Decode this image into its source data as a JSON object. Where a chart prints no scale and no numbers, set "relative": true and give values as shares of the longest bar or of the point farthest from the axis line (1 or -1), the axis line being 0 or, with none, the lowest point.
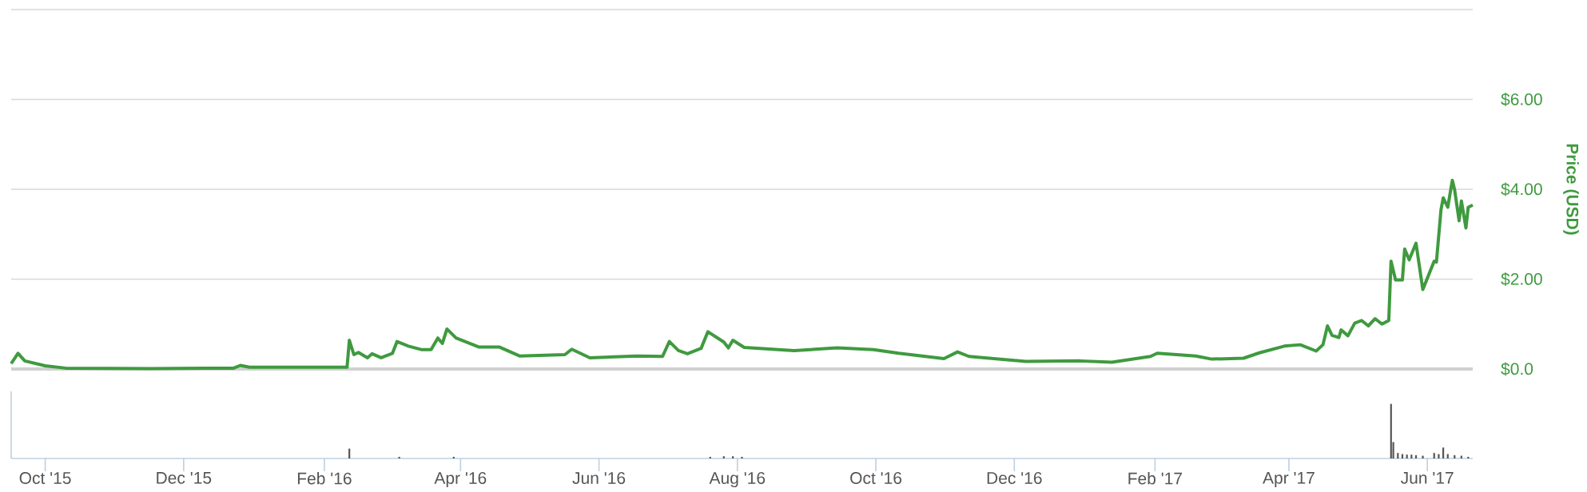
{
  "chart_data": [
    {
      "type": "line",
      "ylabel": "Price (USD)",
      "color": "#3f9a3f",
      "grid": "y",
      "tick_labels": "y",
      "xlim": [
        "2015-09-16",
        "2017-06-21"
      ],
      "ylim": [
        0,
        8
      ],
      "yticks": [
        {
          "value": 0,
          "label": "$0.0"
        },
        {
          "value": 2,
          "label": "$2.00"
        },
        {
          "value": 4,
          "label": "$4.00"
        },
        {
          "value": 6,
          "label": "$6.00"
        },
        {
          "value": 8,
          "label": null
        }
      ],
      "x": [
        "2015-09-16",
        "2015-09-19",
        "2015-09-22",
        "2015-10-01",
        "2015-10-10",
        "2015-11-17",
        "2015-12-23",
        "2015-12-26",
        "2015-12-30",
        "2016-02-11",
        "2016-02-12",
        "2016-02-14",
        "2016-02-16",
        "2016-02-20",
        "2016-02-22",
        "2016-02-26",
        "2016-03-02",
        "2016-03-04",
        "2016-03-09",
        "2016-03-15",
        "2016-03-19",
        "2016-03-22",
        "2016-03-24",
        "2016-03-26",
        "2016-03-30",
        "2016-04-09",
        "2016-04-18",
        "2016-04-27",
        "2016-05-17",
        "2016-05-20",
        "2016-05-28",
        "2016-06-18",
        "2016-06-29",
        "2016-07-02",
        "2016-07-06",
        "2016-07-10",
        "2016-07-16",
        "2016-07-19",
        "2016-07-26",
        "2016-07-28",
        "2016-07-30",
        "2016-08-04",
        "2016-08-26",
        "2016-09-14",
        "2016-09-30",
        "2016-10-11",
        "2016-10-31",
        "2016-11-06",
        "2016-11-11",
        "2016-12-06",
        "2016-12-30",
        "2017-01-13",
        "2017-01-30",
        "2017-02-02",
        "2017-02-19",
        "2017-02-26",
        "2017-03-12",
        "2017-03-19",
        "2017-03-30",
        "2017-04-06",
        "2017-04-13",
        "2017-04-16",
        "2017-04-18",
        "2017-04-20",
        "2017-04-23",
        "2017-04-24",
        "2017-04-27",
        "2017-04-30",
        "2017-05-03",
        "2017-05-06",
        "2017-05-09",
        "2017-05-12",
        "2017-05-15",
        "2017-05-16",
        "2017-05-18",
        "2017-05-21",
        "2017-05-22",
        "2017-05-24",
        "2017-05-27",
        "2017-05-30",
        "2017-06-04",
        "2017-06-05",
        "2017-06-07",
        "2017-06-08",
        "2017-06-10",
        "2017-06-12",
        "2017-06-13",
        "2017-06-15",
        "2017-06-16",
        "2017-06-18",
        "2017-06-19",
        "2017-06-21"
      ],
      "values": [
        0.12,
        0.35,
        0.18,
        0.07,
        0.02,
        0.01,
        0.02,
        0.08,
        0.04,
        0.04,
        0.64,
        0.32,
        0.37,
        0.25,
        0.34,
        0.25,
        0.35,
        0.61,
        0.51,
        0.43,
        0.43,
        0.69,
        0.57,
        0.89,
        0.69,
        0.49,
        0.49,
        0.29,
        0.32,
        0.44,
        0.25,
        0.29,
        0.28,
        0.61,
        0.41,
        0.34,
        0.46,
        0.83,
        0.6,
        0.47,
        0.64,
        0.48,
        0.41,
        0.47,
        0.43,
        0.35,
        0.23,
        0.38,
        0.28,
        0.17,
        0.18,
        0.15,
        0.28,
        0.35,
        0.29,
        0.22,
        0.24,
        0.36,
        0.51,
        0.54,
        0.4,
        0.54,
        0.96,
        0.75,
        0.7,
        0.87,
        0.74,
        1.02,
        1.08,
        0.96,
        1.12,
        1.0,
        1.08,
        2.4,
        1.98,
        1.98,
        2.67,
        2.43,
        2.8,
        1.77,
        2.4,
        2.38,
        3.54,
        3.81,
        3.6,
        4.2,
        3.99,
        3.3,
        3.74,
        3.14,
        3.6,
        3.65
      ]
    },
    {
      "type": "bar",
      "relative": true,
      "color": "#555555",
      "xlim": [
        "2015-09-16",
        "2017-06-21"
      ],
      "xticks": [
        {
          "value": "2015-10-01",
          "label": "Oct '15"
        },
        {
          "value": "2015-12-01",
          "label": "Dec '15"
        },
        {
          "value": "2016-02-01",
          "label": "Feb '16"
        },
        {
          "value": "2016-04-01",
          "label": "Apr '16"
        },
        {
          "value": "2016-06-01",
          "label": "Jun '16"
        },
        {
          "value": "2016-08-01",
          "label": "Aug '16"
        },
        {
          "value": "2016-10-01",
          "label": "Oct '16"
        },
        {
          "value": "2016-12-01",
          "label": "Dec '16"
        },
        {
          "value": "2017-02-01",
          "label": "Feb '17"
        },
        {
          "value": "2017-04-01",
          "label": "Apr '17"
        },
        {
          "value": "2017-06-01",
          "label": "Jun '17"
        }
      ],
      "x": [
        "2016-02-12",
        "2016-03-05",
        "2016-03-29",
        "2016-07-20",
        "2016-07-26",
        "2016-07-30",
        "2016-08-03",
        "2017-05-16",
        "2017-05-17",
        "2017-05-19",
        "2017-05-21",
        "2017-05-23",
        "2017-05-25",
        "2017-05-27",
        "2017-05-30",
        "2017-06-04",
        "2017-06-06",
        "2017-06-08",
        "2017-06-10",
        "2017-06-13",
        "2017-06-16",
        "2017-06-19"
      ],
      "values": [
        0.18,
        0.03,
        0.03,
        0.03,
        0.04,
        0.04,
        0.03,
        1.0,
        0.3,
        0.1,
        0.08,
        0.07,
        0.07,
        0.06,
        0.05,
        0.1,
        0.08,
        0.2,
        0.08,
        0.06,
        0.05,
        0.03
      ]
    }
  ]
}
